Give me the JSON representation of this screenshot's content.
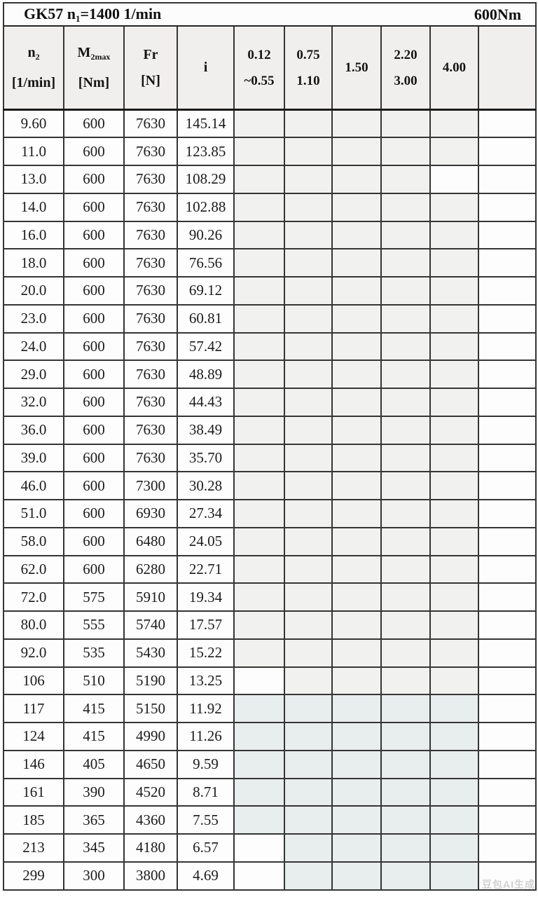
{
  "table": {
    "title": {
      "left_prefix": "GK57 n",
      "left_sub": "1",
      "left_suffix": "=1400 1/min",
      "right": "600Nm"
    },
    "headers": {
      "n2": {
        "symbol": "n",
        "sub": "2",
        "unit": "[1/min]"
      },
      "m2max": {
        "symbol": "M",
        "sub": "2max",
        "unit": "[Nm]"
      },
      "fr": {
        "symbol": "Fr",
        "sub": "",
        "unit": "[N]"
      },
      "i": {
        "symbol": "i",
        "sub": "",
        "unit": ""
      }
    },
    "power_headers": [
      {
        "line1": "0.12",
        "line2": "~0.55"
      },
      {
        "line1": "0.75",
        "line2": "1.10"
      },
      {
        "line1": "1.50",
        "line2": ""
      },
      {
        "line1": "2.20",
        "line2": "3.00"
      },
      {
        "line1": "4.00",
        "line2": ""
      },
      {
        "line1": "",
        "line2": ""
      }
    ],
    "shade_colors": {
      "g": "#f1f1f0",
      "b": "#e8edee",
      "w": "#fdfdfd"
    },
    "rows": [
      {
        "n2": "9.60",
        "m2max": "600",
        "fr": "7630",
        "i": "145.14",
        "shades": [
          "g",
          "g",
          "g",
          "g",
          "g",
          "w"
        ]
      },
      {
        "n2": "11.0",
        "m2max": "600",
        "fr": "7630",
        "i": "123.85",
        "shades": [
          "g",
          "g",
          "g",
          "g",
          "g",
          "w"
        ]
      },
      {
        "n2": "13.0",
        "m2max": "600",
        "fr": "7630",
        "i": "108.29",
        "shades": [
          "g",
          "g",
          "g",
          "g",
          "w",
          "w"
        ]
      },
      {
        "n2": "14.0",
        "m2max": "600",
        "fr": "7630",
        "i": "102.88",
        "shades": [
          "g",
          "g",
          "g",
          "g",
          "g",
          "w"
        ]
      },
      {
        "n2": "16.0",
        "m2max": "600",
        "fr": "7630",
        "i": "90.26",
        "shades": [
          "g",
          "g",
          "g",
          "g",
          "g",
          "w"
        ]
      },
      {
        "n2": "18.0",
        "m2max": "600",
        "fr": "7630",
        "i": "76.56",
        "shades": [
          "g",
          "g",
          "g",
          "g",
          "g",
          "w"
        ]
      },
      {
        "n2": "20.0",
        "m2max": "600",
        "fr": "7630",
        "i": "69.12",
        "shades": [
          "g",
          "g",
          "g",
          "g",
          "g",
          "w"
        ]
      },
      {
        "n2": "23.0",
        "m2max": "600",
        "fr": "7630",
        "i": "60.81",
        "shades": [
          "g",
          "g",
          "g",
          "g",
          "g",
          "w"
        ]
      },
      {
        "n2": "24.0",
        "m2max": "600",
        "fr": "7630",
        "i": "57.42",
        "shades": [
          "g",
          "g",
          "g",
          "g",
          "g",
          "w"
        ]
      },
      {
        "n2": "29.0",
        "m2max": "600",
        "fr": "7630",
        "i": "48.89",
        "shades": [
          "g",
          "g",
          "g",
          "g",
          "g",
          "w"
        ]
      },
      {
        "n2": "32.0",
        "m2max": "600",
        "fr": "7630",
        "i": "44.43",
        "shades": [
          "g",
          "g",
          "g",
          "g",
          "g",
          "w"
        ]
      },
      {
        "n2": "36.0",
        "m2max": "600",
        "fr": "7630",
        "i": "38.49",
        "shades": [
          "g",
          "g",
          "g",
          "g",
          "g",
          "w"
        ]
      },
      {
        "n2": "39.0",
        "m2max": "600",
        "fr": "7630",
        "i": "35.70",
        "shades": [
          "g",
          "g",
          "g",
          "g",
          "g",
          "w"
        ]
      },
      {
        "n2": "46.0",
        "m2max": "600",
        "fr": "7300",
        "i": "30.28",
        "shades": [
          "g",
          "g",
          "g",
          "g",
          "g",
          "w"
        ]
      },
      {
        "n2": "51.0",
        "m2max": "600",
        "fr": "6930",
        "i": "27.34",
        "shades": [
          "g",
          "g",
          "g",
          "g",
          "g",
          "w"
        ]
      },
      {
        "n2": "58.0",
        "m2max": "600",
        "fr": "6480",
        "i": "24.05",
        "shades": [
          "g",
          "g",
          "g",
          "g",
          "g",
          "w"
        ]
      },
      {
        "n2": "62.0",
        "m2max": "600",
        "fr": "6280",
        "i": "22.71",
        "shades": [
          "g",
          "g",
          "g",
          "g",
          "g",
          "w"
        ]
      },
      {
        "n2": "72.0",
        "m2max": "575",
        "fr": "5910",
        "i": "19.34",
        "shades": [
          "g",
          "g",
          "g",
          "g",
          "g",
          "w"
        ]
      },
      {
        "n2": "80.0",
        "m2max": "555",
        "fr": "5740",
        "i": "17.57",
        "shades": [
          "g",
          "g",
          "g",
          "g",
          "g",
          "w"
        ]
      },
      {
        "n2": "92.0",
        "m2max": "535",
        "fr": "5430",
        "i": "15.22",
        "shades": [
          "g",
          "g",
          "g",
          "g",
          "g",
          "w"
        ]
      },
      {
        "n2": "106",
        "m2max": "510",
        "fr": "5190",
        "i": "13.25",
        "shades": [
          "w",
          "g",
          "g",
          "g",
          "g",
          "w"
        ]
      },
      {
        "n2": "117",
        "m2max": "415",
        "fr": "5150",
        "i": "11.92",
        "shades": [
          "b",
          "b",
          "b",
          "b",
          "b",
          "w"
        ]
      },
      {
        "n2": "124",
        "m2max": "415",
        "fr": "4990",
        "i": "11.26",
        "shades": [
          "b",
          "b",
          "b",
          "b",
          "b",
          "w"
        ]
      },
      {
        "n2": "146",
        "m2max": "405",
        "fr": "4650",
        "i": "9.59",
        "shades": [
          "b",
          "b",
          "b",
          "b",
          "b",
          "w"
        ]
      },
      {
        "n2": "161",
        "m2max": "390",
        "fr": "4520",
        "i": "8.71",
        "shades": [
          "b",
          "b",
          "b",
          "b",
          "b",
          "w"
        ]
      },
      {
        "n2": "185",
        "m2max": "365",
        "fr": "4360",
        "i": "7.55",
        "shades": [
          "b",
          "b",
          "b",
          "b",
          "b",
          "w"
        ]
      },
      {
        "n2": "213",
        "m2max": "345",
        "fr": "4180",
        "i": "6.57",
        "shades": [
          "w",
          "b",
          "b",
          "b",
          "b",
          "w"
        ]
      },
      {
        "n2": "299",
        "m2max": "300",
        "fr": "3800",
        "i": "4.69",
        "shades": [
          "w",
          "b",
          "b",
          "b",
          "b",
          "w"
        ]
      }
    ]
  },
  "watermark": {
    "text": "豆包AI生成"
  }
}
